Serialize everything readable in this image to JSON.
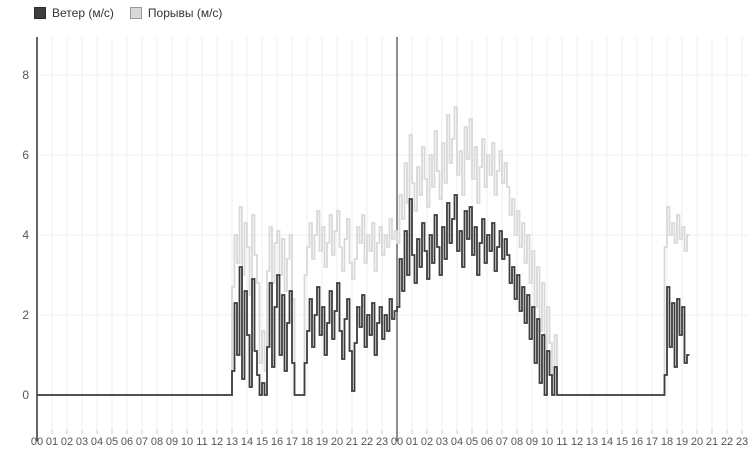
{
  "legend": {
    "position": "top-left"
  },
  "chart_data": {
    "type": "line",
    "step": true,
    "title": "",
    "xlabel": "",
    "ylabel": "",
    "grid": true,
    "legend_position": "top-left",
    "sample_interval_minutes": 10,
    "start_time_label": "00",
    "day_divider_hour_index": 24,
    "y_ticks": [
      0,
      2,
      4,
      6,
      8
    ],
    "ylim": [
      -0.9,
      8.95
    ],
    "hour_labels": [
      "00",
      "01",
      "02",
      "03",
      "04",
      "05",
      "06",
      "07",
      "08",
      "09",
      "10",
      "11",
      "12",
      "13",
      "14",
      "15",
      "16",
      "17",
      "18",
      "19",
      "20",
      "21",
      "22",
      "23",
      "00",
      "01",
      "02",
      "03",
      "04",
      "05",
      "06",
      "07",
      "08",
      "09",
      "10",
      "11",
      "12",
      "13",
      "14",
      "15",
      "16",
      "17",
      "18",
      "19",
      "20",
      "21",
      "22",
      "23"
    ],
    "series": [
      {
        "key": "wind",
        "name": "Ветер (м/с)",
        "color": "#3d3d3d",
        "values": [
          0,
          0,
          0,
          0,
          0,
          0,
          0,
          0,
          0,
          0,
          0,
          0,
          0,
          0,
          0,
          0,
          0,
          0,
          0,
          0,
          0,
          0,
          0,
          0,
          0,
          0,
          0,
          0,
          0,
          0,
          0,
          0,
          0,
          0,
          0,
          0,
          0,
          0,
          0,
          0,
          0,
          0,
          0,
          0,
          0,
          0,
          0,
          0,
          0,
          0,
          0,
          0,
          0,
          0,
          0,
          0,
          0,
          0,
          0,
          0,
          0,
          0,
          0,
          0,
          0,
          0,
          0,
          0,
          0,
          0,
          0,
          0,
          0,
          0,
          0,
          0,
          0,
          0,
          0.6,
          2.3,
          1,
          3.2,
          0.4,
          2.6,
          1.5,
          0.2,
          2.9,
          1.1,
          0.5,
          0,
          0.3,
          0,
          1.2,
          2.8,
          0.7,
          2.2,
          3,
          1,
          2.5,
          0.6,
          1.8,
          2.6,
          0.8,
          0,
          0,
          0,
          0,
          0.8,
          1.6,
          2.4,
          1.2,
          2,
          2.7,
          1.5,
          2.2,
          1,
          1.8,
          2.6,
          1.4,
          2.1,
          2.8,
          1.6,
          0.9,
          1.9,
          2.4,
          1.1,
          0.1,
          1.3,
          2.2,
          1.7,
          2.5,
          1.2,
          2,
          1.5,
          2.3,
          1,
          1.8,
          2.2,
          1.4,
          2,
          1.6,
          2.4,
          1.9,
          2.1,
          2.2,
          3.4,
          2.6,
          4.1,
          3,
          4.9,
          3.5,
          2.8,
          3.9,
          3.2,
          4.3,
          3.6,
          2.9,
          4,
          3.3,
          4.5,
          3.7,
          3,
          4.2,
          3.4,
          4.8,
          3.8,
          4.4,
          5,
          3.6,
          4.1,
          3.2,
          4.6,
          3.9,
          4.7,
          3.5,
          4.2,
          3,
          3.8,
          4.4,
          3.3,
          4,
          3.6,
          4.3,
          3.1,
          3.7,
          4.1,
          3.4,
          3.9,
          3.5,
          2.8,
          3.2,
          2.4,
          3,
          2.1,
          2.7,
          1.8,
          2.5,
          1.4,
          2.2,
          0.8,
          1.9,
          0.3,
          1.5,
          0,
          1.1,
          0.5,
          0,
          0.7,
          0,
          0,
          0,
          0,
          0,
          0,
          0,
          0,
          0,
          0,
          0,
          0,
          0,
          0,
          0,
          0,
          0,
          0,
          0,
          0,
          0,
          0,
          0,
          0,
          0,
          0,
          0,
          0,
          0,
          0,
          0,
          0,
          0,
          0,
          0,
          0,
          0,
          0,
          0,
          0,
          0,
          0,
          0,
          0.5,
          2.7,
          1.2,
          2.3,
          0.7,
          2.4,
          1.5,
          2.2,
          0.8,
          1
        ]
      },
      {
        "key": "gusts",
        "name": "Порывы (м/с)",
        "color": "#d9d9d9",
        "values": [
          0,
          0,
          0,
          0,
          0,
          0,
          0,
          0,
          0,
          0,
          0,
          0,
          0,
          0,
          0,
          0,
          0,
          0,
          0,
          0,
          0,
          0,
          0,
          0,
          0,
          0,
          0,
          0,
          0,
          0,
          0,
          0,
          0,
          0,
          0,
          0,
          0,
          0,
          0,
          0,
          0,
          0,
          0,
          0,
          0,
          0,
          0,
          0,
          0,
          0,
          0,
          0,
          0,
          0,
          0,
          0,
          0,
          0,
          0,
          0,
          0,
          0,
          0,
          0,
          0,
          0,
          0,
          0,
          0,
          0,
          0,
          0,
          0,
          0,
          0,
          0,
          0,
          0,
          2.7,
          4,
          3.3,
          4.7,
          3,
          4.3,
          3.7,
          2.5,
          4.5,
          3.5,
          2.8,
          0.8,
          1.6,
          0.6,
          3.1,
          4.2,
          2.8,
          3.8,
          4.1,
          3,
          3.9,
          2.6,
          3.4,
          4,
          2.4,
          0,
          0,
          0,
          0,
          3,
          3.7,
          4.3,
          3.4,
          4,
          4.6,
          3.6,
          4.2,
          3.2,
          3.8,
          4.5,
          3.5,
          4.1,
          4.6,
          3.7,
          3.1,
          3.9,
          4.4,
          3.3,
          2.9,
          3.4,
          4.2,
          3.8,
          4.5,
          3.3,
          4,
          3.6,
          4.3,
          3.1,
          3.8,
          4.2,
          3.5,
          4,
          3.7,
          4.4,
          3.9,
          4.1,
          3.8,
          5,
          4.4,
          5.8,
          4.8,
          6.5,
          5.3,
          4.6,
          5.7,
          5,
          6.2,
          5.4,
          4.7,
          6,
          5.2,
          6.6,
          5.6,
          4.9,
          6.3,
          5.3,
          7,
          5.8,
          6.4,
          7.2,
          5.5,
          6.1,
          5,
          6.7,
          5.9,
          6.9,
          5.4,
          6.2,
          4.8,
          5.7,
          6.4,
          5.2,
          6,
          5.5,
          6.3,
          5,
          5.6,
          6.1,
          5.3,
          5.8,
          5.2,
          4.5,
          4.9,
          4,
          4.6,
          3.7,
          4.3,
          3.3,
          4,
          2.8,
          3.6,
          2.2,
          3.2,
          1.6,
          2.8,
          0.9,
          2.2,
          1.3,
          0.5,
          1.5,
          0,
          0,
          0,
          0,
          0,
          0,
          0,
          0,
          0,
          0,
          0,
          0,
          0,
          0,
          0,
          0,
          0,
          0,
          0,
          0,
          0,
          0,
          0,
          0,
          0,
          0,
          0,
          0,
          0,
          0,
          0,
          0,
          0,
          0,
          0,
          0,
          0,
          0,
          0,
          0,
          0,
          0,
          0,
          3.7,
          4.7,
          4,
          4.3,
          3.8,
          4.5,
          3.9,
          4.2,
          3.6,
          4
        ]
      }
    ],
    "colors": {
      "axis": "#333333",
      "divider": "#444444",
      "gridline": "#efefef",
      "tick": "#cccccc",
      "label": "#555555"
    }
  }
}
